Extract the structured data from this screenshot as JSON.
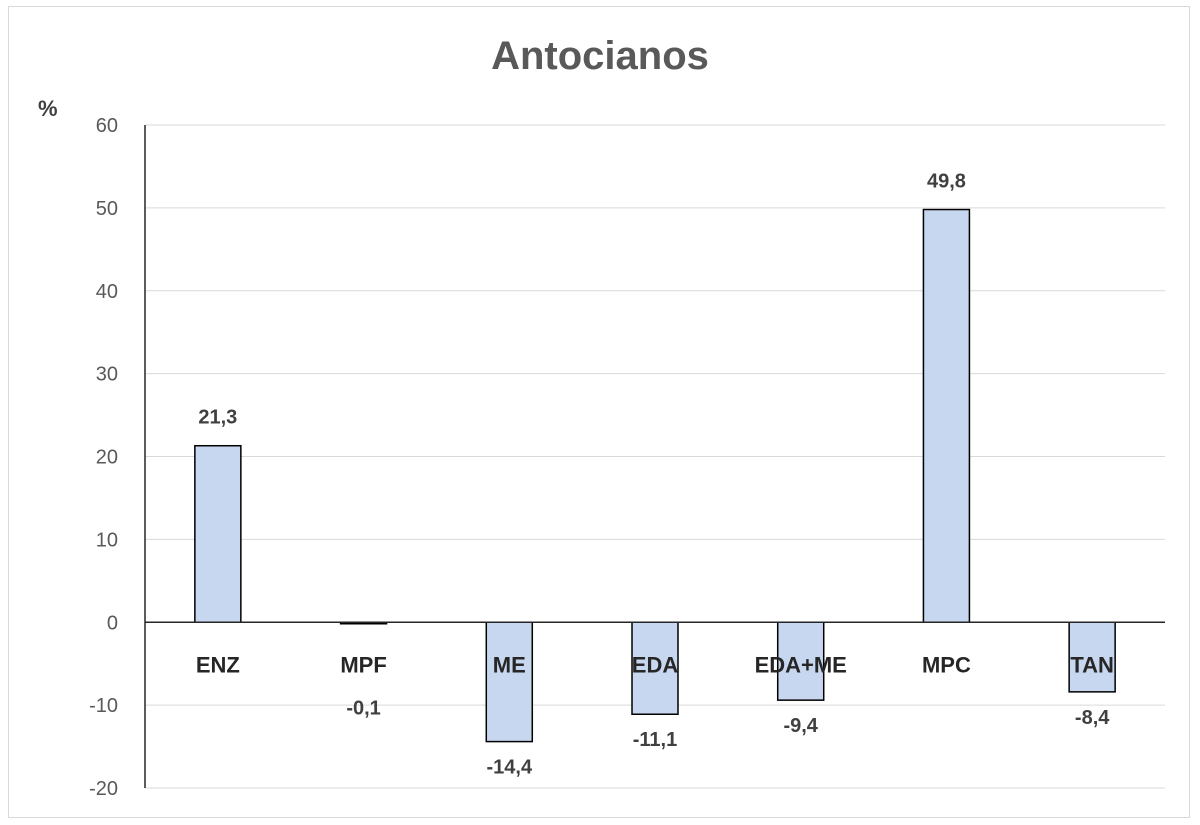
{
  "chart_data": {
    "type": "bar",
    "title": "Antocianos",
    "ylabel": "%",
    "xlabel": "",
    "categories": [
      "ENZ",
      "MPF",
      "ME",
      "EDA",
      "EDA+ME",
      "MPC",
      "TAN"
    ],
    "values": [
      21.3,
      -0.1,
      -14.4,
      -11.1,
      -9.4,
      49.8,
      -8.4
    ],
    "data_labels": [
      "21,3",
      "-0,1",
      "-14,4",
      "-11,1",
      "-9,4",
      "49,8",
      "-8,4"
    ],
    "ylim": [
      -20,
      60
    ],
    "yticks": [
      60,
      50,
      40,
      30,
      20,
      10,
      0,
      -10,
      -20
    ],
    "grid": true,
    "colors": {
      "bar_fill": "#c6d7ef",
      "bar_stroke": "#000000",
      "grid": "#d9d9d9"
    }
  }
}
